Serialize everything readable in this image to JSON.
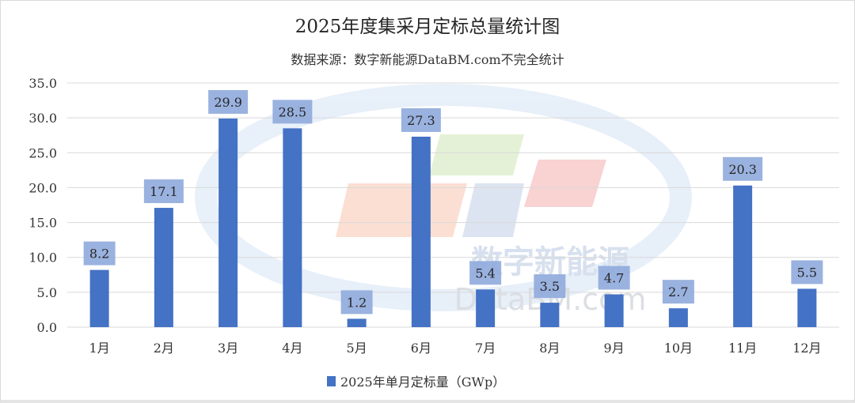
{
  "chart_data": {
    "type": "bar",
    "title": "2025年度集采月定标总量统计图",
    "subtitle": "数据来源：数字新能源DataBM.com不完全统计",
    "categories": [
      "1月",
      "2月",
      "3月",
      "4月",
      "5月",
      "6月",
      "7月",
      "8月",
      "9月",
      "10月",
      "11月",
      "12月"
    ],
    "series": [
      {
        "name": "2025年单月定标量（GWp）",
        "values": [
          8.2,
          17.1,
          29.9,
          28.5,
          1.2,
          27.3,
          5.4,
          3.5,
          4.7,
          2.7,
          20.3,
          5.5
        ]
      }
    ],
    "data_labels": [
      "8.2",
      "17.1",
      "29.9",
      "28.5",
      "1.2",
      "27.3",
      "5.4",
      "3.5",
      "4.7",
      "2.7",
      "20.3",
      "5.5"
    ],
    "yticks": [
      "0.0",
      "5.0",
      "10.0",
      "15.0",
      "20.0",
      "25.0",
      "30.0",
      "35.0"
    ],
    "ylim": [
      0,
      35
    ],
    "grid": true,
    "legend_position": "bottom",
    "bar_color": "#4472c4",
    "label_bg_color": "#8faadc",
    "watermark": {
      "cn": "数字新能源",
      "en": "DataBM.com"
    }
  }
}
